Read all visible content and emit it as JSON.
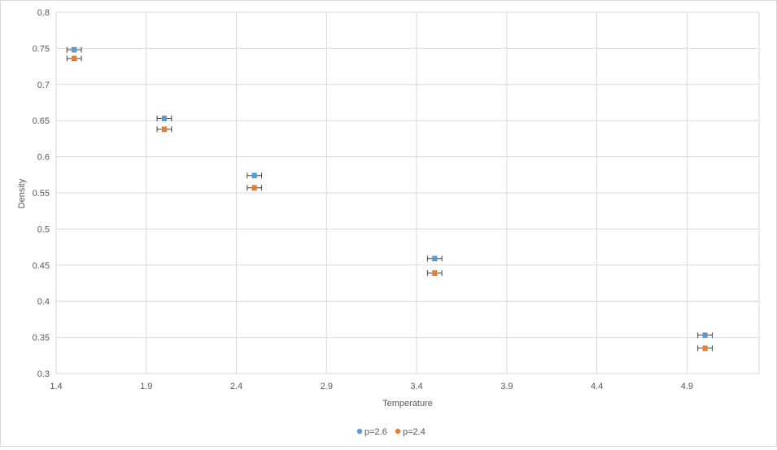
{
  "chart_data": {
    "type": "scatter",
    "title": "",
    "xlabel": "Temperature",
    "ylabel": "Density",
    "xlim": [
      1.4,
      5.3
    ],
    "ylim": [
      0.3,
      0.8
    ],
    "xticks": [
      1.4,
      1.9,
      2.4,
      2.9,
      3.4,
      3.9,
      4.4,
      4.9
    ],
    "xtick_labels": [
      "1.4",
      "1.9",
      "2.4",
      "2.9",
      "3.4",
      "3.9",
      "4.4",
      "4.9"
    ],
    "yticks": [
      0.3,
      0.35,
      0.4,
      0.45,
      0.5,
      0.55,
      0.6,
      0.65,
      0.7,
      0.75,
      0.8
    ],
    "ytick_labels": [
      "0.3",
      "0.35",
      "0.4",
      "0.45",
      "0.5",
      "0.55",
      "0.6",
      "0.65",
      "0.7",
      "0.75",
      "0.8"
    ],
    "grid": true,
    "legend_position": "bottom-center",
    "series": [
      {
        "name": "p=2.6",
        "color": "#5b9bd5",
        "x": [
          1.5,
          2.0,
          2.5,
          3.5,
          5.0
        ],
        "y": [
          0.748,
          0.653,
          0.574,
          0.459,
          0.353
        ],
        "x_error": 0.04,
        "y_error": 0.003
      },
      {
        "name": "p=2.4",
        "color": "#ed7d31",
        "x": [
          1.5,
          2.0,
          2.5,
          3.5,
          5.0
        ],
        "y": [
          0.736,
          0.638,
          0.557,
          0.439,
          0.335
        ],
        "x_error": 0.04,
        "y_error": 0.003
      }
    ]
  },
  "colors": {
    "grid": "#d9d9d9",
    "axis_text": "#595959",
    "error_bar": "#404040"
  }
}
